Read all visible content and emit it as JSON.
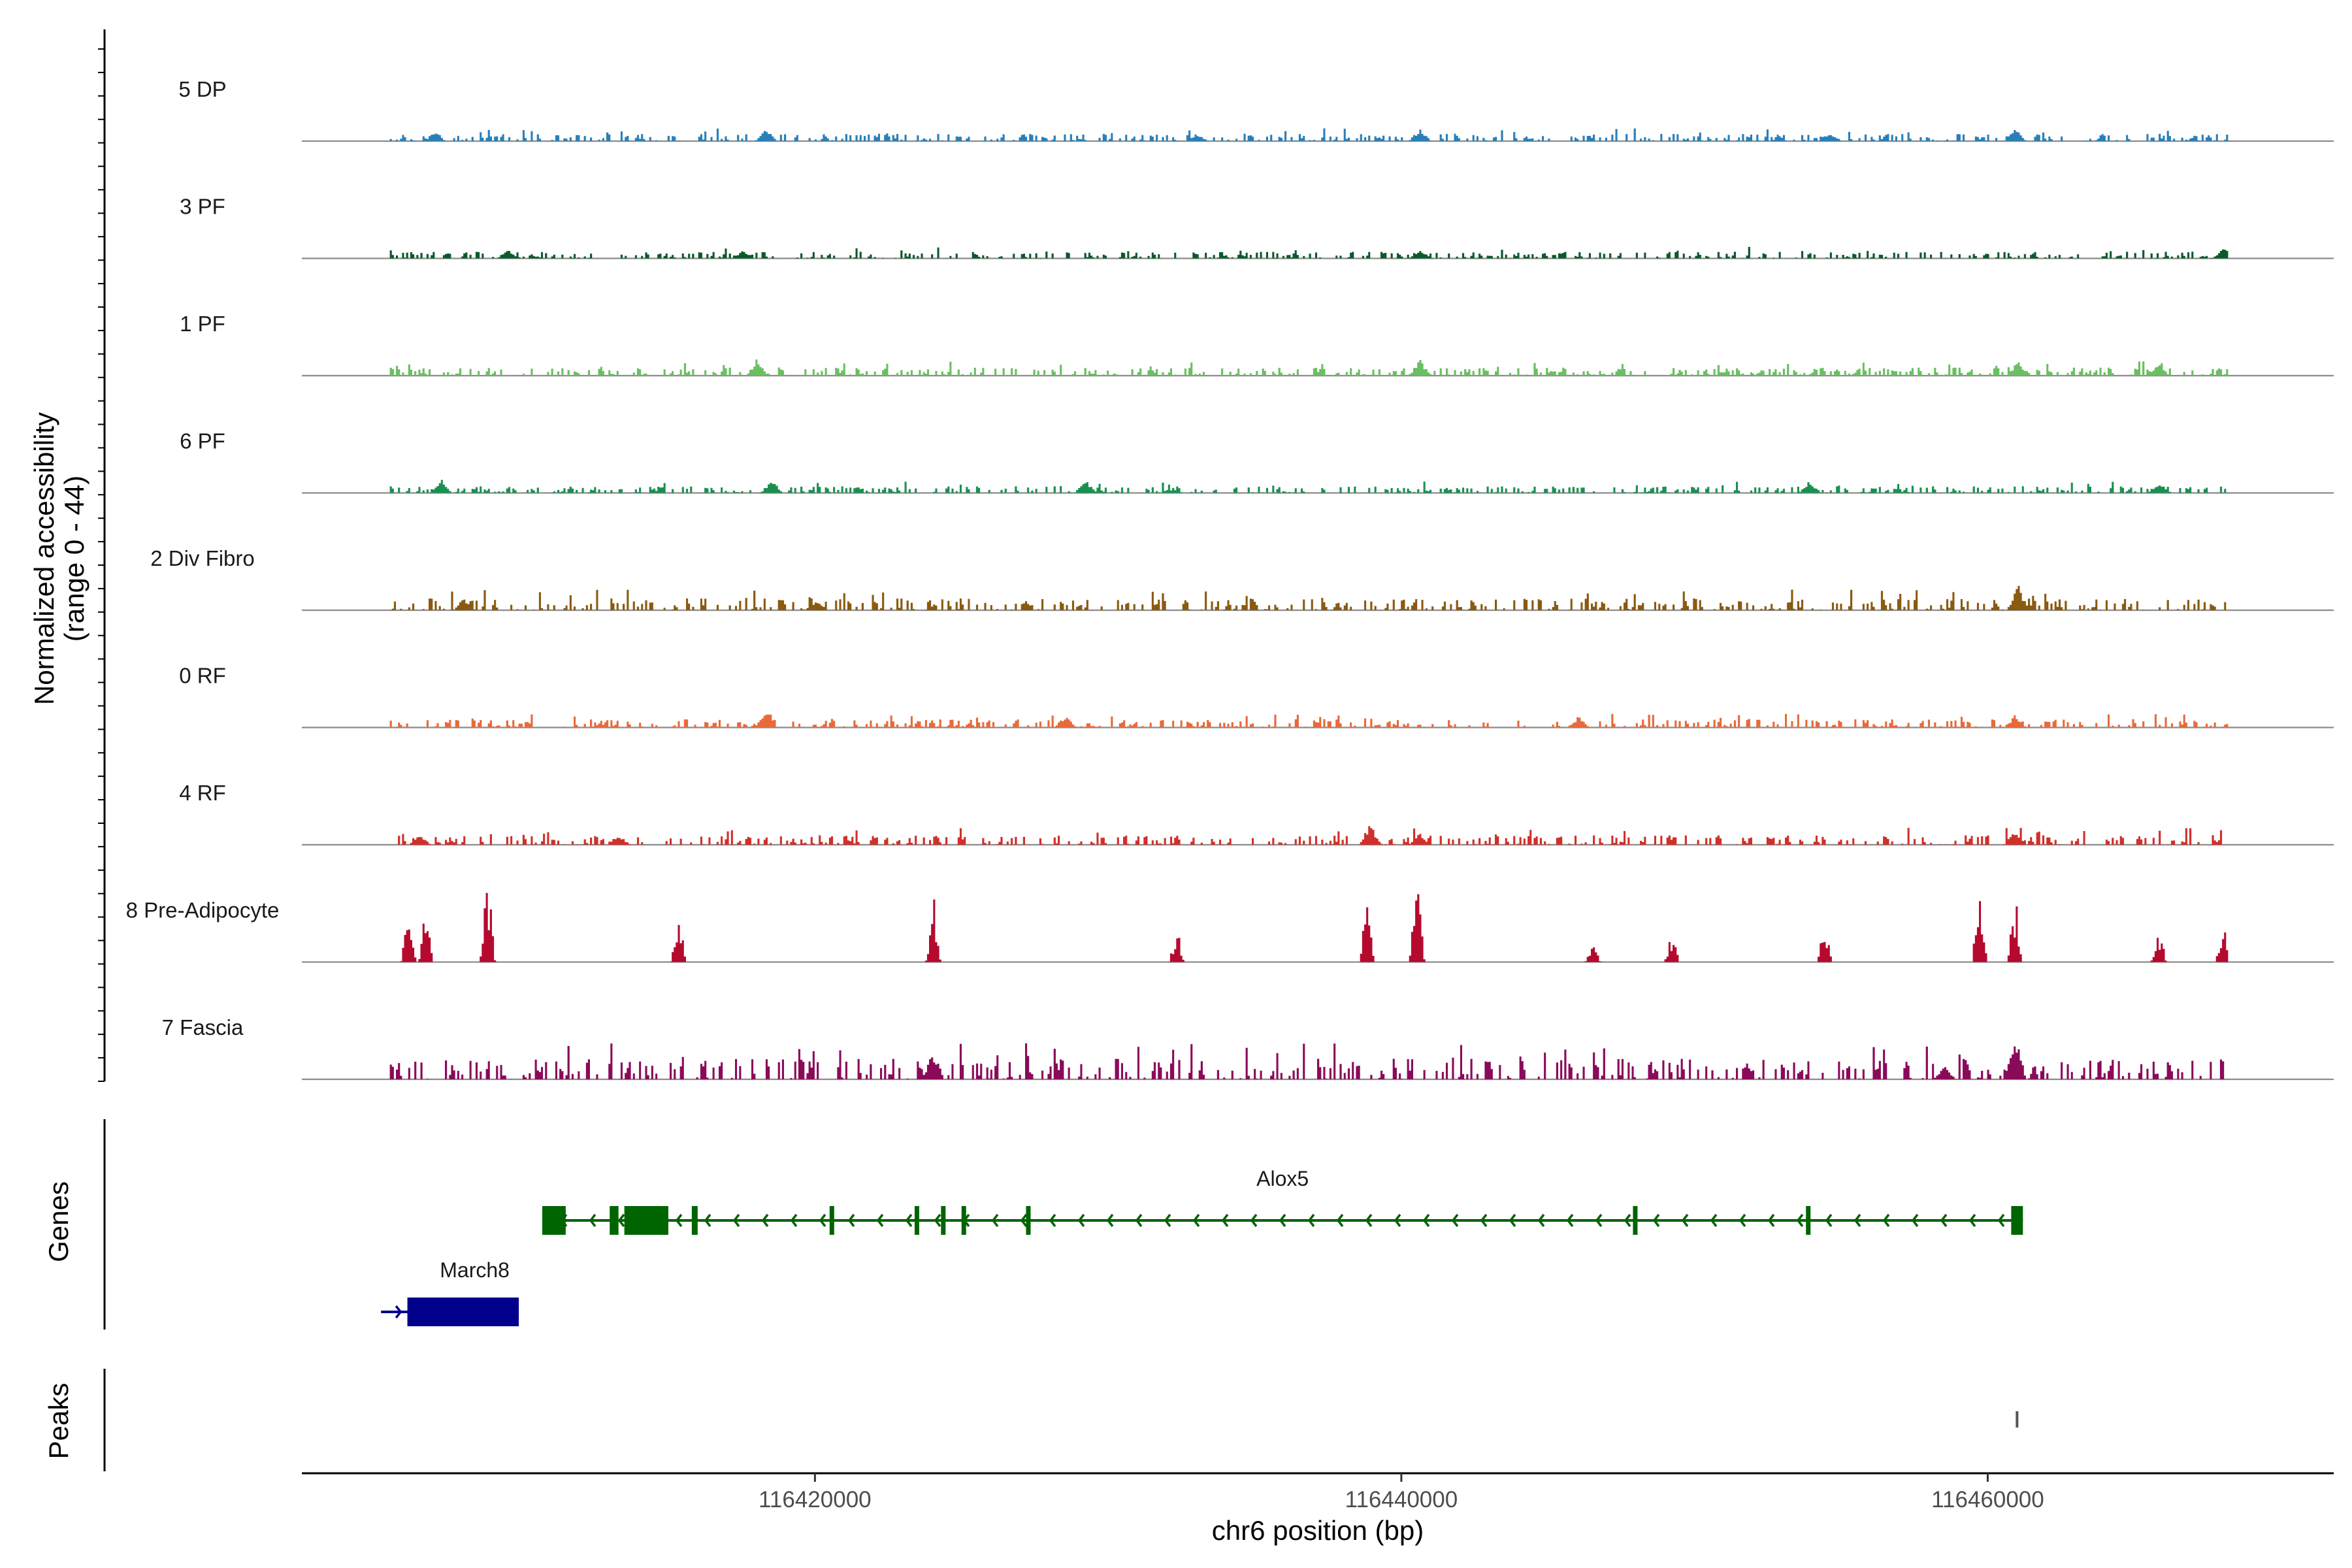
{
  "chart_data": {
    "type": "coverage",
    "title": "",
    "xlabel": "chr6 position (bp)",
    "ylabel": "Normalized accessibility",
    "ylabel_range": "(range 0 - 44)",
    "ylim": [
      0,
      44
    ],
    "xlim": [
      116402500,
      116471800
    ],
    "x_ticks": [
      116420000,
      116440000,
      116460000
    ],
    "x_tick_labels": [
      "116420000",
      "116440000",
      "116460000"
    ],
    "tracks": [
      {
        "name": "5 DP",
        "color": "#2a7fb8",
        "max": 5,
        "seed": 11,
        "peaks": [
          [
            116407000,
            3
          ],
          [
            116418300,
            4
          ],
          [
            116433000,
            2.5
          ],
          [
            116440600,
            4
          ],
          [
            116460900,
            4
          ],
          [
            116454600,
            3
          ]
        ]
      },
      {
        "name": "3 PF",
        "color": "#0a5a2a",
        "max": 4.5,
        "seed": 23,
        "peaks": [
          [
            116409500,
            3
          ],
          [
            116417500,
            2.5
          ],
          [
            116440600,
            3
          ],
          [
            116468000,
            3.5
          ]
        ]
      },
      {
        "name": "1 PF",
        "color": "#6abf62",
        "max": 5.5,
        "seed": 37,
        "peaks": [
          [
            116418000,
            5.5
          ],
          [
            116440600,
            5
          ],
          [
            116461000,
            4.5
          ],
          [
            116465800,
            3.5
          ]
        ]
      },
      {
        "name": "6 PF",
        "color": "#1a9050",
        "max": 4.5,
        "seed": 41,
        "peaks": [
          [
            116407200,
            4.5
          ],
          [
            116418500,
            4
          ],
          [
            116429200,
            4
          ],
          [
            116453900,
            4
          ],
          [
            116465800,
            3.5
          ]
        ]
      },
      {
        "name": "2 Div Fibro",
        "color": "#8a5a10",
        "max": 8,
        "seed": 53,
        "peaks": [
          [
            116408000,
            4
          ],
          [
            116420000,
            3.5
          ],
          [
            116461000,
            8
          ]
        ]
      },
      {
        "name": "0 RF",
        "color": "#e86a3a",
        "max": 5.5,
        "seed": 67,
        "peaks": [
          [
            116418300,
            5.5
          ],
          [
            116428500,
            4
          ],
          [
            116446000,
            3.5
          ],
          [
            116460900,
            4
          ]
        ]
      },
      {
        "name": "4 RF",
        "color": "#d0302a",
        "max": 6.5,
        "seed": 71,
        "peaks": [
          [
            116406500,
            3
          ],
          [
            116413300,
            3
          ],
          [
            116438900,
            6.5
          ],
          [
            116440600,
            3.5
          ],
          [
            116460900,
            5
          ]
        ]
      },
      {
        "name": "8 Pre-Adipocyte",
        "color": "#b50a2e",
        "max": 30,
        "seed": 83,
        "sparse": true,
        "peaks": [
          [
            116406100,
            20
          ],
          [
            116406700,
            18
          ],
          [
            116408800,
            30
          ],
          [
            116415300,
            20
          ],
          [
            116424000,
            22
          ],
          [
            116432300,
            12
          ],
          [
            116438800,
            24
          ],
          [
            116440500,
            30
          ],
          [
            116446500,
            6
          ],
          [
            116449200,
            10
          ],
          [
            116454400,
            12
          ],
          [
            116459700,
            30
          ],
          [
            116460900,
            22
          ],
          [
            116465800,
            12
          ],
          [
            116468000,
            12
          ]
        ]
      },
      {
        "name": "7 Fascia",
        "color": "#8a0a5a",
        "max": 14,
        "seed": 97,
        "peaks": [
          [
            116424000,
            9
          ],
          [
            116458500,
            4
          ],
          [
            116460900,
            14
          ]
        ]
      }
    ],
    "genes": [
      {
        "name": "Alox5",
        "strand": "-",
        "color": "#006400",
        "start": 116410700,
        "end": 116461200,
        "exons": [
          [
            116410700,
            116411500
          ],
          [
            116413000,
            116413300
          ],
          [
            116413500,
            116415000
          ],
          [
            116415800,
            116416000
          ],
          [
            116420500,
            116420600
          ],
          [
            116423400,
            116423500
          ],
          [
            116424300,
            116424400
          ],
          [
            116425000,
            116425100
          ],
          [
            116427200,
            116427300
          ],
          [
            116447900,
            116448000
          ],
          [
            116453800,
            116453950
          ],
          [
            116460800,
            116461200
          ]
        ]
      },
      {
        "name": "March8",
        "strand": "+",
        "color": "#00008b",
        "start": 116405200,
        "end": 116409900,
        "exons": [
          [
            116406100,
            116409900
          ]
        ]
      }
    ],
    "peak_marks": [
      116461000
    ],
    "panels": {
      "genes": "Genes",
      "peaks": "Peaks"
    }
  }
}
